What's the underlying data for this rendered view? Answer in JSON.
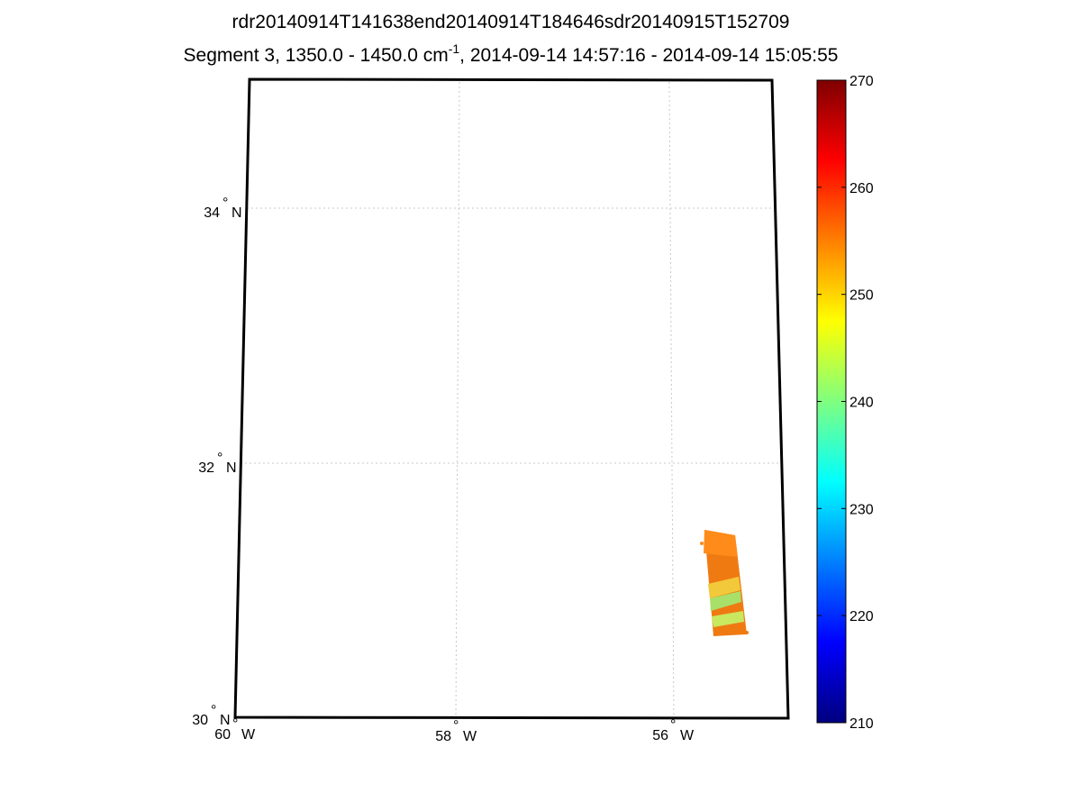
{
  "title": {
    "line1": "rdr20140914T141638end20140914T184646sdr20140915T152709",
    "line2_prefix": "Segment 3, 1350.0 - 1450.0 cm",
    "line2_sup": "-1",
    "line2_suffix": ", 2014-09-14 14:57:16 - 2014-09-14 15:05:55"
  },
  "map": {
    "lat_labels": [
      {
        "deg": "34",
        "hemi": "N"
      },
      {
        "deg": "32",
        "hemi": "N"
      },
      {
        "deg": "30",
        "hemi": "N"
      }
    ],
    "lon_labels": [
      {
        "deg": "60",
        "hemi": "W"
      },
      {
        "deg": "58",
        "hemi": "W"
      },
      {
        "deg": "56",
        "hemi": "W"
      }
    ],
    "swath_colors": {
      "main": "#f07a12",
      "upper": "#ff8c1a",
      "band_yellow": "#f2c93a",
      "band_green": "#a8e06a",
      "band_lightgreen": "#c8e860"
    }
  },
  "colorbar": {
    "min": 210,
    "max": 270,
    "ticks": [
      "270",
      "260",
      "250",
      "240",
      "230",
      "220",
      "210"
    ],
    "colormap": "jet"
  }
}
